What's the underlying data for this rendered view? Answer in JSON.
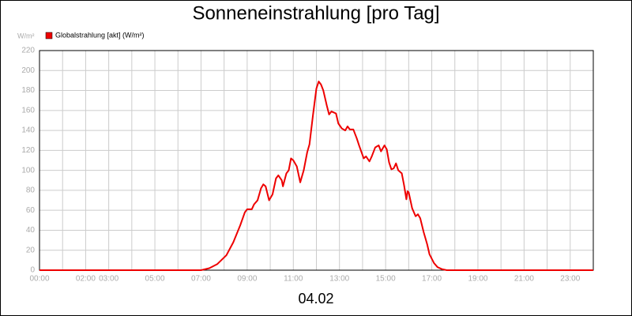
{
  "chart_data": {
    "type": "line",
    "title": "Sonneneinstrahlung [pro Tag]",
    "xlabel": "04.02",
    "ylabel": "W/m²",
    "x": [
      0,
      7.0,
      7.36,
      7.7,
      8.1,
      8.4,
      8.7,
      8.9,
      9.0,
      9.2,
      9.3,
      9.45,
      9.6,
      9.7,
      9.8,
      9.95,
      10.1,
      10.25,
      10.35,
      10.5,
      10.55,
      10.7,
      10.8,
      10.9,
      11.0,
      11.15,
      11.3,
      11.45,
      11.6,
      11.7,
      11.85,
      12.0,
      12.1,
      12.2,
      12.3,
      12.45,
      12.55,
      12.65,
      12.85,
      12.95,
      13.1,
      13.25,
      13.35,
      13.45,
      13.6,
      13.75,
      13.85,
      14.05,
      14.15,
      14.3,
      14.4,
      14.55,
      14.7,
      14.8,
      14.95,
      15.05,
      15.15,
      15.25,
      15.35,
      15.45,
      15.55,
      15.7,
      15.8,
      15.9,
      15.95,
      16.0,
      16.15,
      16.3,
      16.4,
      16.5,
      16.65,
      16.8,
      16.9,
      17.1,
      17.25,
      17.45,
      17.65,
      24
    ],
    "series": [
      {
        "name": "Globalstrahlung [akt] (W/m²)",
        "color": "#ee0000",
        "values": [
          0,
          0,
          2,
          6,
          15,
          28,
          45,
          58,
          61,
          61,
          66,
          70,
          82,
          86,
          84,
          70,
          76,
          92,
          95,
          90,
          84,
          97,
          100,
          112,
          110,
          104,
          88,
          100,
          118,
          126,
          155,
          182,
          189,
          186,
          180,
          165,
          156,
          159,
          157,
          147,
          142,
          140,
          144,
          141,
          141,
          132,
          125,
          112,
          114,
          109,
          114,
          123,
          125,
          119,
          125,
          121,
          108,
          101,
          102,
          107,
          100,
          97,
          85,
          71,
          79,
          78,
          62,
          54,
          56,
          52,
          38,
          26,
          16,
          7,
          3,
          1,
          0,
          0
        ]
      }
    ],
    "xlim": [
      0,
      24
    ],
    "ylim": [
      0,
      220
    ],
    "yticks": [
      0,
      20,
      40,
      60,
      80,
      100,
      120,
      140,
      160,
      180,
      200,
      220
    ],
    "xticks": [
      {
        "value": 0,
        "label": "00:00"
      },
      {
        "value": 1,
        "label": null
      },
      {
        "value": 2,
        "label": "02:00"
      },
      {
        "value": 3,
        "label": "03:00"
      },
      {
        "value": 4,
        "label": null
      },
      {
        "value": 5,
        "label": "05:00"
      },
      {
        "value": 6,
        "label": null
      },
      {
        "value": 7,
        "label": "07:00"
      },
      {
        "value": 8,
        "label": null
      },
      {
        "value": 9,
        "label": "09:00"
      },
      {
        "value": 10,
        "label": null
      },
      {
        "value": 11,
        "label": "11:00"
      },
      {
        "value": 12,
        "label": null
      },
      {
        "value": 13,
        "label": "13:00"
      },
      {
        "value": 14,
        "label": null
      },
      {
        "value": 15,
        "label": "15:00"
      },
      {
        "value": 16,
        "label": null
      },
      {
        "value": 17,
        "label": "17:00"
      },
      {
        "value": 18,
        "label": null
      },
      {
        "value": 19,
        "label": "19:00"
      },
      {
        "value": 20,
        "label": null
      },
      {
        "value": 21,
        "label": "21:00"
      },
      {
        "value": 22,
        "label": null
      },
      {
        "value": 23,
        "label": "23:00"
      },
      {
        "value": 24,
        "label": null
      }
    ],
    "grid": true,
    "legend": "top-left"
  }
}
